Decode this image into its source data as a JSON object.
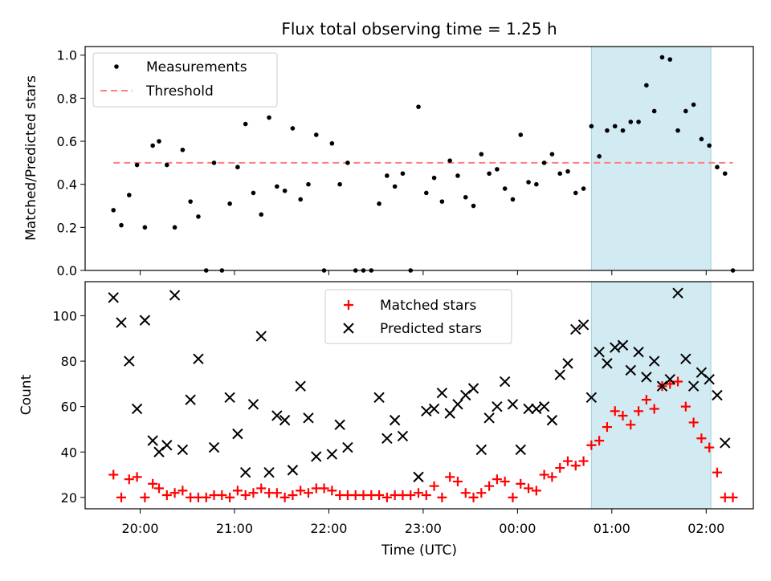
{
  "chart_data": [
    {
      "type": "scatter",
      "title": "Flux total observing time = 1.25 h",
      "xlabel": "",
      "ylabel": "Matched/Predicted stars",
      "ylim": [
        0,
        1.04
      ],
      "yticks": [
        "0.0",
        "0.2",
        "0.4",
        "0.6",
        "0.8",
        "1.0"
      ],
      "legend": {
        "placement": "top-left",
        "entries": [
          {
            "key": "measurements",
            "label": "Measurements"
          },
          {
            "key": "threshold",
            "label": "Threshold"
          }
        ]
      },
      "threshold": {
        "value": 0.5,
        "x_start": "19:43",
        "x_end": "02:17"
      },
      "highlight": {
        "x_start": "00:47",
        "x_end": "02:03",
        "color": "#add8e6"
      },
      "series": [
        {
          "name": "Measurements",
          "color": "#000000",
          "points": [
            [
              "19:43",
              0.28
            ],
            [
              "19:48",
              0.21
            ],
            [
              "19:53",
              0.35
            ],
            [
              "19:58",
              0.49
            ],
            [
              "20:03",
              0.2
            ],
            [
              "20:08",
              0.58
            ],
            [
              "20:12",
              0.6
            ],
            [
              "20:17",
              0.49
            ],
            [
              "20:22",
              0.2
            ],
            [
              "20:27",
              0.56
            ],
            [
              "20:32",
              0.32
            ],
            [
              "20:37",
              0.25
            ],
            [
              "20:42",
              0.0
            ],
            [
              "20:47",
              0.5
            ],
            [
              "20:52",
              0.0
            ],
            [
              "20:57",
              0.31
            ],
            [
              "21:02",
              0.48
            ],
            [
              "21:07",
              0.68
            ],
            [
              "21:12",
              0.36
            ],
            [
              "21:17",
              0.26
            ],
            [
              "21:22",
              0.71
            ],
            [
              "21:27",
              0.39
            ],
            [
              "21:32",
              0.37
            ],
            [
              "21:37",
              0.66
            ],
            [
              "21:42",
              0.33
            ],
            [
              "21:47",
              0.4
            ],
            [
              "21:52",
              0.63
            ],
            [
              "21:57",
              0.0
            ],
            [
              "22:02",
              0.59
            ],
            [
              "22:07",
              0.4
            ],
            [
              "22:12",
              0.5
            ],
            [
              "22:17",
              0.0
            ],
            [
              "22:22",
              0.0
            ],
            [
              "22:27",
              0.0
            ],
            [
              "22:32",
              0.31
            ],
            [
              "22:37",
              0.44
            ],
            [
              "22:42",
              0.39
            ],
            [
              "22:47",
              0.45
            ],
            [
              "22:52",
              0.0
            ],
            [
              "22:57",
              0.76
            ],
            [
              "23:02",
              0.36
            ],
            [
              "23:07",
              0.43
            ],
            [
              "23:12",
              0.32
            ],
            [
              "23:17",
              0.51
            ],
            [
              "23:22",
              0.44
            ],
            [
              "23:27",
              0.34
            ],
            [
              "23:32",
              0.3
            ],
            [
              "23:37",
              0.54
            ],
            [
              "23:42",
              0.45
            ],
            [
              "23:47",
              0.47
            ],
            [
              "23:52",
              0.38
            ],
            [
              "23:57",
              0.33
            ],
            [
              "00:02",
              0.63
            ],
            [
              "00:07",
              0.41
            ],
            [
              "00:12",
              0.4
            ],
            [
              "00:17",
              0.5
            ],
            [
              "00:22",
              0.54
            ],
            [
              "00:27",
              0.45
            ],
            [
              "00:32",
              0.46
            ],
            [
              "00:37",
              0.36
            ],
            [
              "00:42",
              0.38
            ],
            [
              "00:47",
              0.67
            ],
            [
              "00:52",
              0.53
            ],
            [
              "00:57",
              0.65
            ],
            [
              "01:02",
              0.67
            ],
            [
              "01:07",
              0.65
            ],
            [
              "01:12",
              0.69
            ],
            [
              "01:17",
              0.69
            ],
            [
              "01:22",
              0.86
            ],
            [
              "01:27",
              0.74
            ],
            [
              "01:32",
              0.99
            ],
            [
              "01:37",
              0.98
            ],
            [
              "01:42",
              0.65
            ],
            [
              "01:47",
              0.74
            ],
            [
              "01:52",
              0.77
            ],
            [
              "01:57",
              0.61
            ],
            [
              "02:02",
              0.58
            ],
            [
              "02:07",
              0.48
            ],
            [
              "02:12",
              0.45
            ],
            [
              "02:17",
              0.0
            ]
          ]
        }
      ]
    },
    {
      "type": "scatter",
      "title": "",
      "xlabel": "Time (UTC)",
      "ylabel": "Count",
      "ylim": [
        15,
        115
      ],
      "yticks": [
        "20",
        "40",
        "60",
        "80",
        "100"
      ],
      "xrange": [
        "19:25",
        "02:30"
      ],
      "xticks": [
        "20:00",
        "21:00",
        "22:00",
        "23:00",
        "00:00",
        "01:00",
        "02:00"
      ],
      "legend": {
        "placement": "top-center",
        "entries": [
          {
            "key": "matched",
            "label": "Matched stars"
          },
          {
            "key": "predicted",
            "label": "Predicted stars"
          }
        ]
      },
      "highlight": {
        "x_start": "00:47",
        "x_end": "02:03",
        "color": "#add8e6"
      },
      "series": [
        {
          "name": "Matched stars",
          "marker": "plus",
          "color": "#ff0000",
          "points": [
            [
              "19:43",
              30
            ],
            [
              "19:48",
              20
            ],
            [
              "19:53",
              28
            ],
            [
              "19:58",
              29
            ],
            [
              "20:03",
              20
            ],
            [
              "20:08",
              26
            ],
            [
              "20:12",
              24
            ],
            [
              "20:17",
              21
            ],
            [
              "20:22",
              22
            ],
            [
              "20:27",
              23
            ],
            [
              "20:32",
              20
            ],
            [
              "20:37",
              20
            ],
            [
              "20:42",
              20
            ],
            [
              "20:47",
              21
            ],
            [
              "20:52",
              21
            ],
            [
              "20:57",
              20
            ],
            [
              "21:02",
              23
            ],
            [
              "21:07",
              21
            ],
            [
              "21:12",
              22
            ],
            [
              "21:17",
              24
            ],
            [
              "21:22",
              22
            ],
            [
              "21:27",
              22
            ],
            [
              "21:32",
              20
            ],
            [
              "21:37",
              21
            ],
            [
              "21:42",
              23
            ],
            [
              "21:47",
              22
            ],
            [
              "21:52",
              24
            ],
            [
              "21:57",
              24
            ],
            [
              "22:02",
              23
            ],
            [
              "22:07",
              21
            ],
            [
              "22:12",
              21
            ],
            [
              "22:17",
              21
            ],
            [
              "22:22",
              21
            ],
            [
              "22:27",
              21
            ],
            [
              "22:32",
              21
            ],
            [
              "22:37",
              20
            ],
            [
              "22:42",
              21
            ],
            [
              "22:47",
              21
            ],
            [
              "22:52",
              21
            ],
            [
              "22:57",
              22
            ],
            [
              "23:02",
              21
            ],
            [
              "23:07",
              25
            ],
            [
              "23:12",
              20
            ],
            [
              "23:17",
              29
            ],
            [
              "23:22",
              27
            ],
            [
              "23:27",
              22
            ],
            [
              "23:32",
              20
            ],
            [
              "23:37",
              22
            ],
            [
              "23:42",
              25
            ],
            [
              "23:47",
              28
            ],
            [
              "23:52",
              27
            ],
            [
              "23:57",
              20
            ],
            [
              "00:02",
              26
            ],
            [
              "00:07",
              24
            ],
            [
              "00:12",
              23
            ],
            [
              "00:17",
              30
            ],
            [
              "00:22",
              29
            ],
            [
              "00:27",
              33
            ],
            [
              "00:32",
              36
            ],
            [
              "00:37",
              34
            ],
            [
              "00:42",
              36
            ],
            [
              "00:47",
              43
            ],
            [
              "00:52",
              45
            ],
            [
              "00:57",
              51
            ],
            [
              "01:02",
              58
            ],
            [
              "01:07",
              56
            ],
            [
              "01:12",
              52
            ],
            [
              "01:17",
              58
            ],
            [
              "01:22",
              63
            ],
            [
              "01:27",
              59
            ],
            [
              "01:32",
              69
            ],
            [
              "01:37",
              70
            ],
            [
              "01:42",
              71
            ],
            [
              "01:47",
              60
            ],
            [
              "01:52",
              53
            ],
            [
              "01:57",
              46
            ],
            [
              "02:02",
              42
            ],
            [
              "02:07",
              31
            ],
            [
              "02:12",
              20
            ],
            [
              "02:17",
              20
            ]
          ]
        },
        {
          "name": "Predicted stars",
          "marker": "x",
          "color": "#000000",
          "points": [
            [
              "19:43",
              108
            ],
            [
              "19:48",
              97
            ],
            [
              "19:53",
              80
            ],
            [
              "19:58",
              59
            ],
            [
              "20:03",
              98
            ],
            [
              "20:08",
              45
            ],
            [
              "20:12",
              40
            ],
            [
              "20:17",
              43
            ],
            [
              "20:22",
              109
            ],
            [
              "20:27",
              41
            ],
            [
              "20:32",
              63
            ],
            [
              "20:37",
              81
            ],
            [
              "20:47",
              42
            ],
            [
              "20:57",
              64
            ],
            [
              "21:02",
              48
            ],
            [
              "21:07",
              31
            ],
            [
              "21:12",
              61
            ],
            [
              "21:17",
              91
            ],
            [
              "21:22",
              31
            ],
            [
              "21:27",
              56
            ],
            [
              "21:32",
              54
            ],
            [
              "21:37",
              32
            ],
            [
              "21:42",
              69
            ],
            [
              "21:47",
              55
            ],
            [
              "21:52",
              38
            ],
            [
              "22:02",
              39
            ],
            [
              "22:07",
              52
            ],
            [
              "22:12",
              42
            ],
            [
              "22:32",
              64
            ],
            [
              "22:37",
              46
            ],
            [
              "22:42",
              54
            ],
            [
              "22:47",
              47
            ],
            [
              "22:57",
              29
            ],
            [
              "23:02",
              58
            ],
            [
              "23:07",
              59
            ],
            [
              "23:12",
              66
            ],
            [
              "23:17",
              57
            ],
            [
              "23:22",
              61
            ],
            [
              "23:27",
              65
            ],
            [
              "23:32",
              68
            ],
            [
              "23:37",
              41
            ],
            [
              "23:42",
              55
            ],
            [
              "23:47",
              60
            ],
            [
              "23:52",
              71
            ],
            [
              "23:57",
              61
            ],
            [
              "00:02",
              41
            ],
            [
              "00:07",
              59
            ],
            [
              "00:12",
              59
            ],
            [
              "00:17",
              60
            ],
            [
              "00:22",
              54
            ],
            [
              "00:27",
              74
            ],
            [
              "00:32",
              79
            ],
            [
              "00:37",
              94
            ],
            [
              "00:42",
              96
            ],
            [
              "00:47",
              64
            ],
            [
              "00:52",
              84
            ],
            [
              "00:57",
              79
            ],
            [
              "01:02",
              86
            ],
            [
              "01:07",
              87
            ],
            [
              "01:12",
              76
            ],
            [
              "01:17",
              84
            ],
            [
              "01:22",
              73
            ],
            [
              "01:27",
              80
            ],
            [
              "01:32",
              69
            ],
            [
              "01:37",
              72
            ],
            [
              "01:42",
              110
            ],
            [
              "01:47",
              81
            ],
            [
              "01:52",
              69
            ],
            [
              "01:57",
              75
            ],
            [
              "02:02",
              72
            ],
            [
              "02:07",
              65
            ],
            [
              "02:12",
              44
            ]
          ]
        }
      ]
    }
  ]
}
